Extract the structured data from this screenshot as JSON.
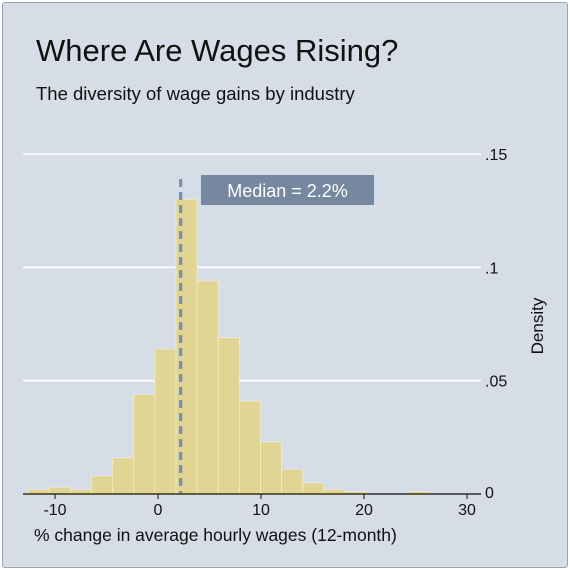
{
  "title": "Where Are Wages Rising?",
  "subtitle": "The diversity of wage gains by industry",
  "chart_data": {
    "type": "bar",
    "title": "Where Are Wages Rising?",
    "subtitle": "The diversity of wage gains by industry",
    "xlabel": "% change in average hourly wages (12-month)",
    "ylabel": "Density",
    "xlim": [
      -13,
      30
    ],
    "ylim": [
      0,
      0.15
    ],
    "x_ticks": [
      -10,
      0,
      10,
      20,
      30
    ],
    "x_tick_labels": [
      "-10",
      "0",
      "10",
      "20",
      "30"
    ],
    "y_ticks": [
      0,
      0.05,
      0.1,
      0.15
    ],
    "y_tick_labels": [
      "0",
      ".05",
      ".1",
      ".15"
    ],
    "y_axis_side": "right",
    "grid": "horizontal",
    "bin_width": 2.05,
    "bin_starts": [
      -12.6,
      -10.55,
      -8.5,
      -6.45,
      -4.4,
      -2.35,
      -0.3,
      1.75,
      3.8,
      5.85,
      7.9,
      9.95,
      12.0,
      14.05,
      16.1,
      18.15,
      20.2,
      22.25,
      24.3,
      26.35
    ],
    "values": [
      0.002,
      0.003,
      0.002,
      0.008,
      0.016,
      0.044,
      0.064,
      0.13,
      0.094,
      0.069,
      0.041,
      0.023,
      0.011,
      0.005,
      0.002,
      0.001,
      0.0,
      0.0,
      0.001,
      0.0
    ],
    "bar_color": "#e0d592",
    "median": 2.2,
    "median_label": "Median = 2.2%",
    "median_line_color": "#7c8fa6"
  }
}
